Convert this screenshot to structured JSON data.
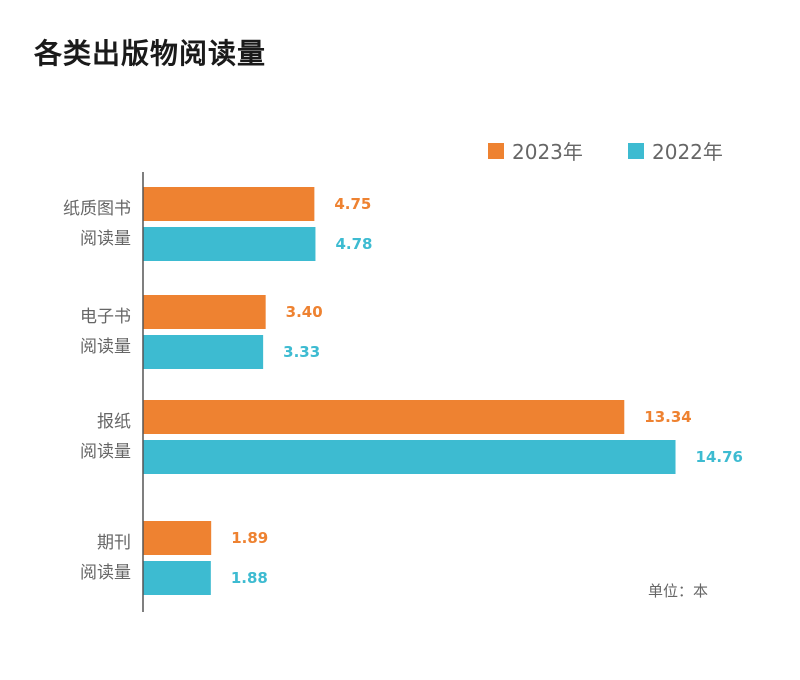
{
  "page": {
    "title": "各类出版物阅读量",
    "unit_note": "单位：本"
  },
  "chart_data": {
    "type": "bar",
    "orientation": "horizontal",
    "title": "各类出版物阅读量",
    "categories": [
      [
        "纸质图书",
        "阅读量"
      ],
      [
        "电子书",
        "阅读量"
      ],
      [
        "报纸",
        "阅读量"
      ],
      [
        "期刊",
        "阅读量"
      ]
    ],
    "series": [
      {
        "name": "2023年",
        "color": "#ee8231",
        "values": [
          4.75,
          3.4,
          13.34,
          1.89
        ],
        "labels": [
          "4.75",
          "3.40",
          "13.34",
          "1.89"
        ]
      },
      {
        "name": "2022年",
        "color": "#3dbbd1",
        "values": [
          4.78,
          3.33,
          14.76,
          1.88
        ],
        "labels": [
          "4.78",
          "3.33",
          "14.76",
          "1.88"
        ]
      }
    ],
    "xlim": [
      0,
      15.3
    ],
    "legend": "top-right",
    "grid": false,
    "unit": "单位：本"
  }
}
